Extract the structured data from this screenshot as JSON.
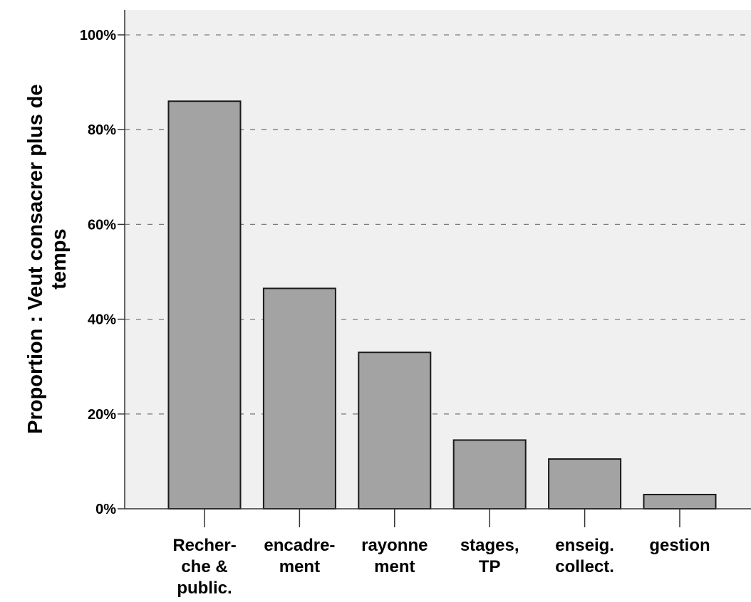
{
  "chart_data": {
    "type": "bar",
    "categories": [
      [
        "Recher-",
        "che &",
        "public."
      ],
      [
        "encadre-",
        "ment"
      ],
      [
        "rayonne",
        "ment"
      ],
      [
        "stages,",
        "TP"
      ],
      [
        "enseig.",
        "collect."
      ],
      [
        "gestion"
      ]
    ],
    "values": [
      86,
      46.5,
      33,
      14.5,
      10.5,
      3
    ],
    "ylabel": [
      "Proportion : Veut consacrer plus de",
      "temps"
    ],
    "ylim": [
      0,
      100
    ],
    "yticks": [
      "0%",
      "20%",
      "40%",
      "60%",
      "80%",
      "100%"
    ],
    "ytick_values": [
      0,
      20,
      40,
      60,
      80,
      100
    ],
    "grid": true,
    "grid_style": "dashed",
    "colors": {
      "bar_fill": "#a3a3a3",
      "bar_stroke": "#1a1a1a",
      "plot_background": "#f0f0f0",
      "grid": "#7a7a7a",
      "axis": "#333333"
    }
  }
}
